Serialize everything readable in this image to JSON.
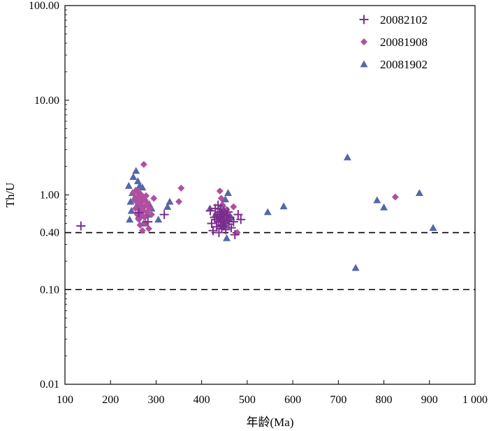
{
  "chart_data": {
    "type": "scatter",
    "title": "",
    "xlabel": "年龄(Ma)",
    "ylabel": "Th/U",
    "xlim": [
      100,
      1000
    ],
    "ylim": [
      0.01,
      100
    ],
    "yscale": "log",
    "grid": false,
    "legend_position": "top-right",
    "x_tick_labels": [
      "100",
      "200",
      "300",
      "400",
      "500",
      "600",
      "700",
      "800",
      "900",
      "1 000"
    ],
    "y_tick_labels": [
      "0.01",
      "0.10",
      "0.40",
      "1.00",
      "10.00",
      "100.00"
    ],
    "reference_lines": [
      0.4,
      0.1
    ],
    "series": [
      {
        "name": "20082102",
        "marker": "plus",
        "color": "#7b2d8e",
        "points": [
          [
            135,
            0.47
          ],
          [
            262,
            0.65
          ],
          [
            318,
            0.62
          ],
          [
            282,
            0.52
          ],
          [
            419,
            0.68
          ],
          [
            422,
            0.5
          ],
          [
            425,
            0.42
          ],
          [
            428,
            0.58
          ],
          [
            430,
            0.72
          ],
          [
            432,
            0.55
          ],
          [
            433,
            0.46
          ],
          [
            435,
            0.62
          ],
          [
            436,
            0.78
          ],
          [
            437,
            0.52
          ],
          [
            438,
            0.4
          ],
          [
            439,
            0.66
          ],
          [
            440,
            0.59
          ],
          [
            441,
            0.48
          ],
          [
            442,
            0.71
          ],
          [
            443,
            0.55
          ],
          [
            444,
            0.44
          ],
          [
            445,
            0.63
          ],
          [
            446,
            0.52
          ],
          [
            447,
            0.6
          ],
          [
            448,
            0.47
          ],
          [
            449,
            0.68
          ],
          [
            450,
            0.57
          ],
          [
            452,
            0.5
          ],
          [
            453,
            0.43
          ],
          [
            455,
            0.61
          ],
          [
            457,
            0.54
          ],
          [
            458,
            0.66
          ],
          [
            460,
            0.49
          ],
          [
            462,
            0.58
          ],
          [
            465,
            0.45
          ],
          [
            470,
            0.52
          ],
          [
            473,
            0.38
          ],
          [
            480,
            0.62
          ],
          [
            486,
            0.55
          ]
        ]
      },
      {
        "name": "20081908",
        "marker": "diamond",
        "color": "#b04fa0",
        "points": [
          [
            250,
            1.05
          ],
          [
            253,
            0.88
          ],
          [
            255,
            0.72
          ],
          [
            256,
            1.12
          ],
          [
            258,
            0.95
          ],
          [
            259,
            0.62
          ],
          [
            260,
            0.82
          ],
          [
            261,
            1.08
          ],
          [
            262,
            0.55
          ],
          [
            263,
            0.9
          ],
          [
            264,
            0.7
          ],
          [
            265,
            0.48
          ],
          [
            266,
            1.02
          ],
          [
            267,
            0.78
          ],
          [
            268,
            0.62
          ],
          [
            269,
            0.85
          ],
          [
            270,
            0.42
          ],
          [
            271,
            0.95
          ],
          [
            272,
            0.68
          ],
          [
            273,
            2.1
          ],
          [
            274,
            0.75
          ],
          [
            275,
            0.58
          ],
          [
            276,
            0.88
          ],
          [
            277,
            0.5
          ],
          [
            278,
            0.98
          ],
          [
            280,
            0.66
          ],
          [
            282,
            0.8
          ],
          [
            284,
            0.44
          ],
          [
            286,
            0.72
          ],
          [
            290,
            0.62
          ],
          [
            295,
            0.92
          ],
          [
            350,
            0.85
          ],
          [
            355,
            1.18
          ],
          [
            440,
            1.1
          ],
          [
            443,
            0.92
          ],
          [
            446,
            0.78
          ],
          [
            450,
            0.65
          ],
          [
            455,
            0.7
          ],
          [
            460,
            0.58
          ],
          [
            470,
            0.75
          ],
          [
            478,
            0.4
          ],
          [
            825,
            0.95
          ]
        ]
      },
      {
        "name": "20081902",
        "marker": "triangle",
        "color": "#5567a8",
        "points": [
          [
            240,
            1.25
          ],
          [
            242,
            0.55
          ],
          [
            244,
            0.85
          ],
          [
            246,
            0.68
          ],
          [
            248,
            1.05
          ],
          [
            250,
            1.55
          ],
          [
            252,
            0.92
          ],
          [
            254,
            1.1
          ],
          [
            256,
            1.8
          ],
          [
            258,
            0.78
          ],
          [
            260,
            1.4
          ],
          [
            262,
            0.6
          ],
          [
            264,
            1.25
          ],
          [
            266,
            0.7
          ],
          [
            268,
            0.95
          ],
          [
            270,
            1.2
          ],
          [
            272,
            0.5
          ],
          [
            275,
            0.88
          ],
          [
            280,
            0.62
          ],
          [
            285,
            0.8
          ],
          [
            290,
            0.72
          ],
          [
            305,
            0.55
          ],
          [
            325,
            0.75
          ],
          [
            330,
            0.85
          ],
          [
            418,
            0.72
          ],
          [
            430,
            0.62
          ],
          [
            440,
            0.55
          ],
          [
            445,
            0.8
          ],
          [
            450,
            0.48
          ],
          [
            452,
            0.9
          ],
          [
            455,
            0.35
          ],
          [
            458,
            1.05
          ],
          [
            465,
            0.58
          ],
          [
            545,
            0.66
          ],
          [
            580,
            0.76
          ],
          [
            720,
            2.5
          ],
          [
            738,
            0.17
          ],
          [
            785,
            0.88
          ],
          [
            800,
            0.74
          ],
          [
            878,
            1.05
          ],
          [
            908,
            0.45
          ]
        ]
      }
    ]
  }
}
